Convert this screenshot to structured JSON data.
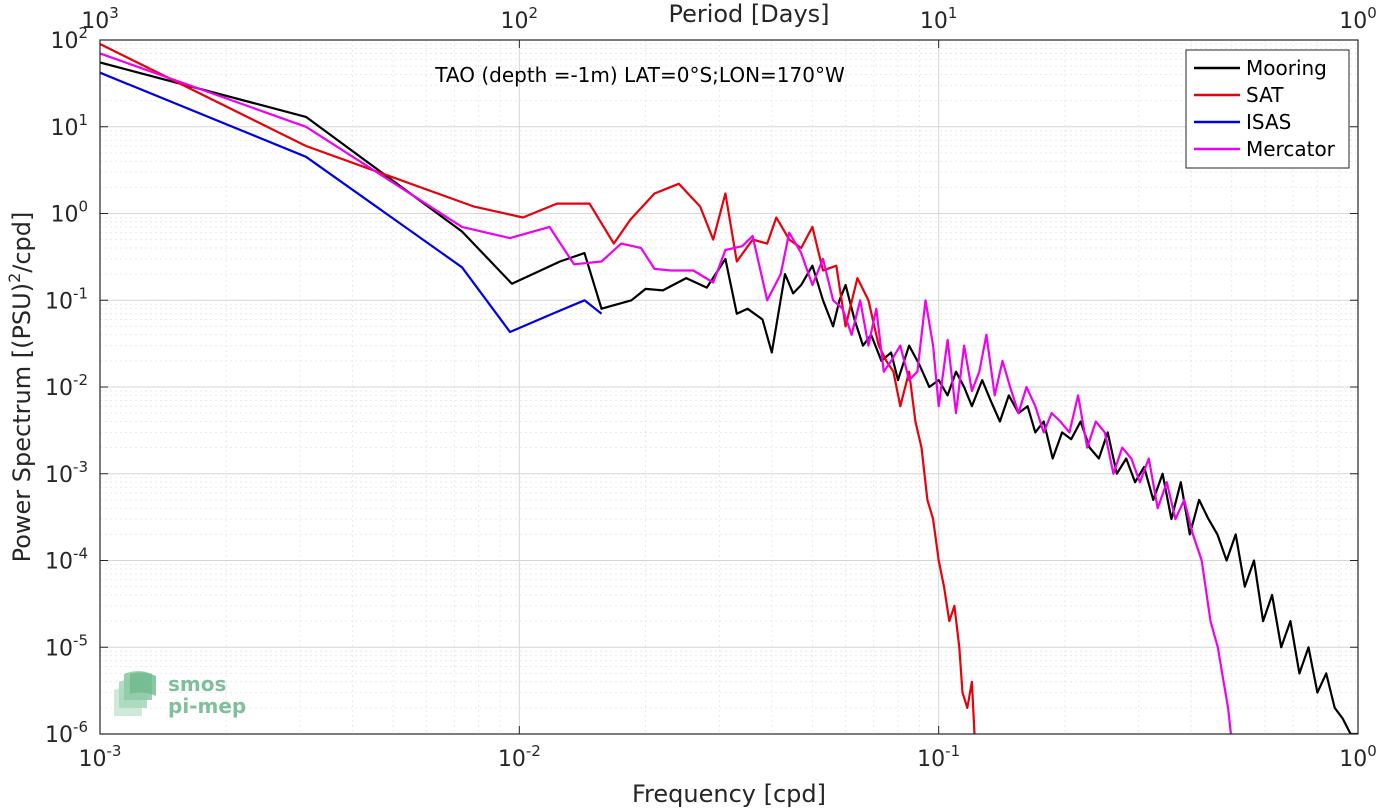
{
  "chart_data": {
    "type": "line",
    "title": "TAO (depth =-1m) LAT=0°S;LON=170°W",
    "xlabel": "Frequency [cpd]",
    "x2label": "Period [Days]",
    "ylabel": "Power Spectrum [(PSU)²/cpd]",
    "ylabel_parts": {
      "pre": "Power Spectrum [(PSU)",
      "sup": "2",
      "post": "/cpd]"
    },
    "xscale": "log",
    "yscale": "log",
    "xlim": [
      0.001,
      1
    ],
    "ylim": [
      1e-06,
      100
    ],
    "grid": true,
    "legend_position": "top-right",
    "x_ticks": [
      {
        "base": "10",
        "exp": "-3"
      },
      {
        "base": "10",
        "exp": "-2"
      },
      {
        "base": "10",
        "exp": "-1"
      },
      {
        "base": "10",
        "exp": "0"
      }
    ],
    "x2_ticks": [
      {
        "base": "10",
        "exp": "3"
      },
      {
        "base": "10",
        "exp": "2"
      },
      {
        "base": "10",
        "exp": "1"
      },
      {
        "base": "10",
        "exp": "0"
      }
    ],
    "y_ticks": [
      {
        "base": "10",
        "exp": "2"
      },
      {
        "base": "10",
        "exp": "1"
      },
      {
        "base": "10",
        "exp": "0"
      },
      {
        "base": "10",
        "exp": "-1"
      },
      {
        "base": "10",
        "exp": "-2"
      },
      {
        "base": "10",
        "exp": "-3"
      },
      {
        "base": "10",
        "exp": "-4"
      },
      {
        "base": "10",
        "exp": "-5"
      },
      {
        "base": "10",
        "exp": "-6"
      }
    ],
    "series": [
      {
        "name": "Mooring",
        "color": "#000000",
        "x": [
          0.001,
          0.0031,
          0.0073,
          0.0096,
          0.0125,
          0.0143,
          0.0157,
          0.0185,
          0.02,
          0.022,
          0.025,
          0.028,
          0.031,
          0.033,
          0.035,
          0.038,
          0.04,
          0.043,
          0.045,
          0.047,
          0.05,
          0.053,
          0.056,
          0.058,
          0.06,
          0.063,
          0.066,
          0.069,
          0.073,
          0.077,
          0.08,
          0.085,
          0.09,
          0.095,
          0.1,
          0.105,
          0.11,
          0.115,
          0.12,
          0.127,
          0.133,
          0.14,
          0.147,
          0.155,
          0.163,
          0.17,
          0.178,
          0.187,
          0.197,
          0.207,
          0.218,
          0.229,
          0.241,
          0.253,
          0.266,
          0.28,
          0.294,
          0.309,
          0.325,
          0.342,
          0.359,
          0.378,
          0.397,
          0.418,
          0.44,
          0.462,
          0.486,
          0.511,
          0.537,
          0.565,
          0.594,
          0.624,
          0.656,
          0.69,
          0.725,
          0.762,
          0.8,
          0.84,
          0.88,
          0.92,
          0.96,
          1.0
        ],
        "y": [
          55,
          13,
          0.62,
          0.155,
          0.28,
          0.35,
          0.08,
          0.1,
          0.135,
          0.13,
          0.18,
          0.14,
          0.3,
          0.07,
          0.08,
          0.06,
          0.025,
          0.2,
          0.12,
          0.15,
          0.25,
          0.1,
          0.05,
          0.1,
          0.15,
          0.06,
          0.03,
          0.04,
          0.02,
          0.025,
          0.012,
          0.03,
          0.018,
          0.01,
          0.012,
          0.008,
          0.015,
          0.01,
          0.006,
          0.012,
          0.007,
          0.004,
          0.008,
          0.005,
          0.006,
          0.003,
          0.004,
          0.0015,
          0.003,
          0.0025,
          0.004,
          0.002,
          0.0015,
          0.003,
          0.001,
          0.0015,
          0.0008,
          0.0012,
          0.0005,
          0.001,
          0.0003,
          0.0008,
          0.0002,
          0.0005,
          0.0003,
          0.0002,
          0.0001,
          0.0002,
          5e-05,
          0.0001,
          2e-05,
          4e-05,
          1e-05,
          2e-05,
          5e-06,
          1e-05,
          3e-06,
          5e-06,
          2e-06,
          1.5e-06,
          1e-06,
          1e-06
        ]
      },
      {
        "name": "SAT",
        "color": "#e8000b",
        "x": [
          0.001,
          0.0031,
          0.0078,
          0.0102,
          0.0123,
          0.0147,
          0.0168,
          0.0184,
          0.021,
          0.024,
          0.027,
          0.029,
          0.031,
          0.033,
          0.036,
          0.039,
          0.041,
          0.044,
          0.047,
          0.05,
          0.053,
          0.057,
          0.06,
          0.064,
          0.068,
          0.072,
          0.075,
          0.078,
          0.081,
          0.085,
          0.088,
          0.091,
          0.094,
          0.097,
          0.1,
          0.103,
          0.106,
          0.109,
          0.112,
          0.114,
          0.117,
          0.12,
          0.122
        ],
        "y": [
          90,
          6,
          1.2,
          0.9,
          1.3,
          1.3,
          0.45,
          0.85,
          1.7,
          2.2,
          1.2,
          0.5,
          1.7,
          0.28,
          0.5,
          0.45,
          0.9,
          0.5,
          0.4,
          0.7,
          0.22,
          0.25,
          0.05,
          0.18,
          0.1,
          0.03,
          0.02,
          0.015,
          0.006,
          0.015,
          0.004,
          0.002,
          0.0005,
          0.0003,
          0.0001,
          5e-05,
          2e-05,
          3e-05,
          1e-05,
          3e-06,
          2e-06,
          4e-06,
          8e-07
        ]
      },
      {
        "name": "ISAS",
        "color": "#0000e8",
        "x": [
          0.001,
          0.0031,
          0.0073,
          0.0095,
          0.012,
          0.0143,
          0.0157
        ],
        "y": [
          42,
          4.5,
          0.24,
          0.043,
          0.07,
          0.1,
          0.07
        ]
      },
      {
        "name": "Mercator",
        "color": "#f000f0",
        "x": [
          0.001,
          0.0031,
          0.0073,
          0.0095,
          0.0118,
          0.0135,
          0.0157,
          0.0175,
          0.0195,
          0.021,
          0.023,
          0.026,
          0.029,
          0.031,
          0.034,
          0.036,
          0.039,
          0.042,
          0.044,
          0.047,
          0.05,
          0.053,
          0.056,
          0.059,
          0.062,
          0.065,
          0.068,
          0.071,
          0.074,
          0.077,
          0.081,
          0.085,
          0.089,
          0.093,
          0.097,
          0.1,
          0.105,
          0.11,
          0.115,
          0.12,
          0.125,
          0.13,
          0.136,
          0.142,
          0.148,
          0.155,
          0.162,
          0.17,
          0.178,
          0.186,
          0.195,
          0.205,
          0.215,
          0.226,
          0.237,
          0.249,
          0.261,
          0.274,
          0.288,
          0.302,
          0.317,
          0.333,
          0.35,
          0.367,
          0.385,
          0.404,
          0.424,
          0.445,
          0.463,
          0.478,
          0.49,
          0.5
        ],
        "y": [
          70,
          10,
          0.7,
          0.52,
          0.7,
          0.26,
          0.28,
          0.45,
          0.4,
          0.23,
          0.22,
          0.22,
          0.16,
          0.38,
          0.42,
          0.55,
          0.1,
          0.2,
          0.6,
          0.35,
          0.15,
          0.3,
          0.1,
          0.08,
          0.04,
          0.1,
          0.03,
          0.08,
          0.015,
          0.02,
          0.03,
          0.012,
          0.015,
          0.1,
          0.03,
          0.006,
          0.035,
          0.005,
          0.03,
          0.009,
          0.015,
          0.04,
          0.008,
          0.02,
          0.01,
          0.005,
          0.01,
          0.006,
          0.003,
          0.005,
          0.004,
          0.003,
          0.008,
          0.002,
          0.004,
          0.003,
          0.001,
          0.002,
          0.0015,
          0.0008,
          0.0015,
          0.0004,
          0.0008,
          0.0003,
          0.0005,
          0.0002,
          0.0001,
          2e-05,
          1e-05,
          4e-06,
          2e-06,
          8e-07
        ]
      }
    ]
  },
  "logo": {
    "line1": "smos",
    "line2": "pi-mep"
  }
}
